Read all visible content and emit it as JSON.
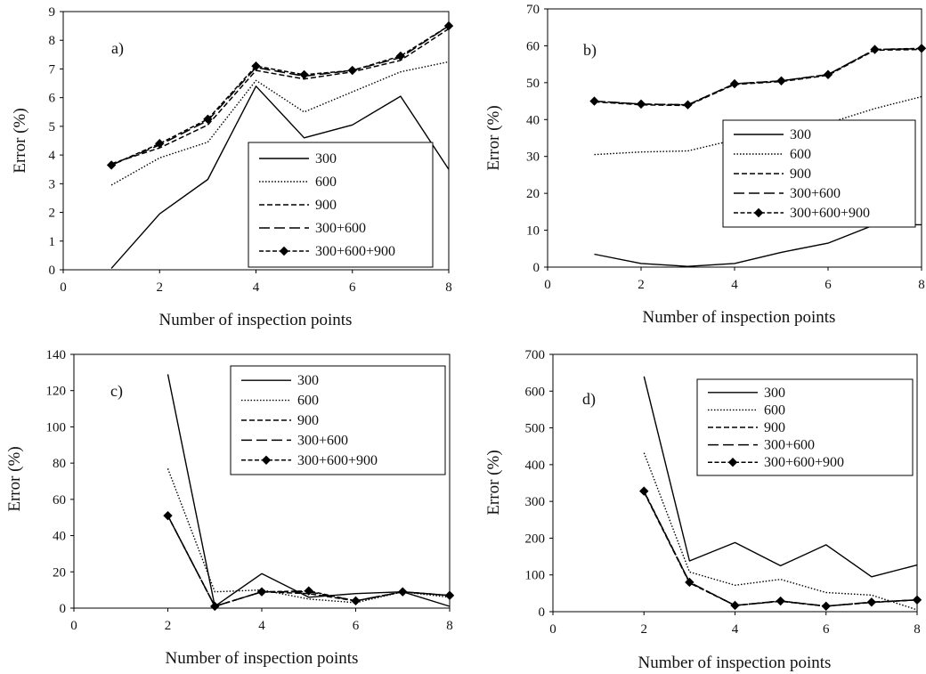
{
  "chart_data": [
    {
      "type": "line",
      "panel_label": "a)",
      "xlabel": "Number of inspection points",
      "ylabel": "Error (%)",
      "xlim": [
        0,
        8
      ],
      "ylim": [
        0,
        9
      ],
      "xticks": [
        0,
        2,
        4,
        6,
        8
      ],
      "yticks": [
        0,
        1,
        2,
        3,
        4,
        5,
        6,
        7,
        8,
        9
      ],
      "legend": "lower-right",
      "x": [
        1,
        2,
        3,
        4,
        5,
        6,
        7,
        8
      ],
      "series": [
        {
          "name": "300",
          "values": [
            0.05,
            1.95,
            3.15,
            6.4,
            4.6,
            5.05,
            6.05,
            3.5
          ]
        },
        {
          "name": "600",
          "values": [
            2.95,
            3.9,
            4.45,
            6.6,
            5.5,
            6.2,
            6.9,
            7.25
          ]
        },
        {
          "name": "900",
          "values": [
            3.7,
            4.25,
            5.05,
            6.95,
            6.65,
            6.9,
            7.3,
            8.4
          ]
        },
        {
          "name": "300+600",
          "values": [
            3.65,
            4.35,
            5.2,
            7.05,
            6.75,
            6.95,
            7.4,
            8.5
          ]
        },
        {
          "name": "300+600+900",
          "values": [
            3.65,
            4.4,
            5.25,
            7.1,
            6.8,
            6.95,
            7.45,
            8.5
          ]
        }
      ]
    },
    {
      "type": "line",
      "panel_label": "b)",
      "xlabel": "Number of inspection points",
      "ylabel": "Error (%)",
      "xlim": [
        0,
        8
      ],
      "ylim": [
        0,
        70
      ],
      "xticks": [
        0,
        2,
        4,
        6,
        8
      ],
      "yticks": [
        0,
        10,
        20,
        30,
        40,
        50,
        60,
        70
      ],
      "legend": "lower-right",
      "x": [
        1,
        2,
        3,
        4,
        5,
        6,
        7,
        8
      ],
      "series": [
        {
          "name": "300",
          "values": [
            3.5,
            1.0,
            0.2,
            1.0,
            4.0,
            6.5,
            11.5,
            11.5
          ]
        },
        {
          "name": "600",
          "values": [
            30.5,
            31.2,
            31.5,
            34.5,
            34.8,
            39.0,
            43.0,
            46.2
          ]
        },
        {
          "name": "900",
          "values": [
            44.8,
            44.0,
            43.8,
            49.5,
            50.3,
            52.0,
            58.8,
            59.0
          ]
        },
        {
          "name": "300+600",
          "values": [
            45.0,
            44.2,
            44.0,
            49.7,
            50.5,
            52.2,
            59.0,
            59.2
          ]
        },
        {
          "name": "300+600+900",
          "values": [
            45.0,
            44.2,
            44.0,
            49.7,
            50.5,
            52.2,
            59.0,
            59.3
          ]
        }
      ]
    },
    {
      "type": "line",
      "panel_label": "c)",
      "xlabel": "Number of inspection points",
      "ylabel": "Error (%)",
      "xlim": [
        0,
        8
      ],
      "ylim": [
        0,
        140
      ],
      "xticks": [
        0,
        2,
        4,
        6,
        8
      ],
      "yticks": [
        0,
        20,
        40,
        60,
        80,
        100,
        120,
        140
      ],
      "legend": "upper-right",
      "x": [
        2,
        3,
        4,
        5,
        6,
        7,
        8
      ],
      "series": [
        {
          "name": "300",
          "values": [
            129,
            1,
            19,
            6,
            8,
            9,
            1
          ]
        },
        {
          "name": "600",
          "values": [
            77,
            9,
            10,
            5,
            3,
            9,
            6
          ]
        },
        {
          "name": "900",
          "values": [
            51,
            1,
            9,
            8,
            4,
            9,
            7
          ]
        },
        {
          "name": "300+600",
          "values": [
            51,
            1,
            9,
            9,
            4,
            9,
            7
          ]
        },
        {
          "name": "300+600+900",
          "values": [
            51,
            1,
            9,
            9.5,
            4,
            9,
            7
          ]
        }
      ]
    },
    {
      "type": "line",
      "panel_label": "d)",
      "xlabel": "Number of inspection points",
      "ylabel": "Error (%)",
      "xlim": [
        0,
        8
      ],
      "ylim": [
        0,
        700
      ],
      "xticks": [
        0,
        2,
        4,
        6,
        8
      ],
      "yticks": [
        0,
        100,
        200,
        300,
        400,
        500,
        600,
        700
      ],
      "legend": "upper-right",
      "x": [
        2,
        3,
        4,
        5,
        6,
        7,
        8
      ],
      "series": [
        {
          "name": "300",
          "values": [
            640,
            138,
            188,
            125,
            182,
            95,
            127
          ]
        },
        {
          "name": "600",
          "values": [
            432,
            108,
            72,
            88,
            52,
            45,
            5
          ]
        },
        {
          "name": "900",
          "values": [
            325,
            78,
            17,
            28,
            15,
            25,
            32
          ]
        },
        {
          "name": "300+600",
          "values": [
            327,
            80,
            17,
            29,
            15,
            26,
            32
          ]
        },
        {
          "name": "300+600+900",
          "values": [
            328,
            80,
            17,
            29,
            15,
            26,
            32
          ]
        }
      ]
    }
  ]
}
